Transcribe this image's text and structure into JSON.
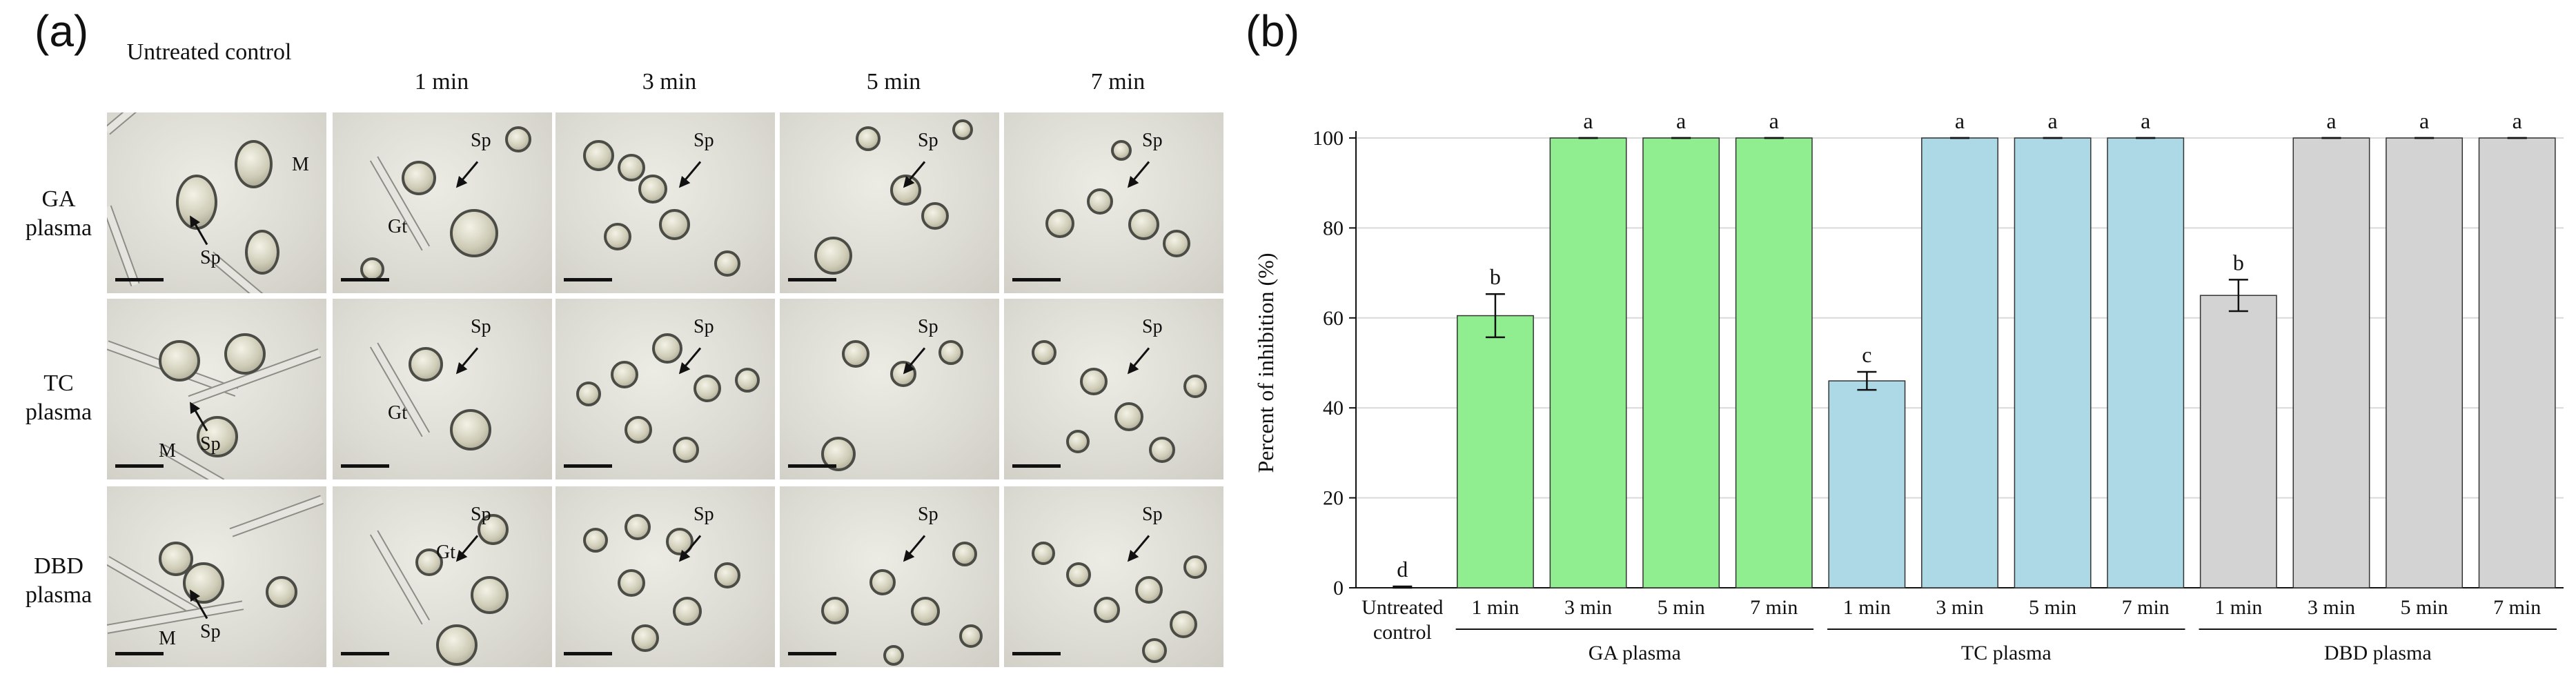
{
  "panel_a": {
    "label": "(a)",
    "columns": [
      "Untreated control",
      "1 min",
      "3 min",
      "5 min",
      "7 min"
    ],
    "rows": [
      "GA plasma",
      "TC plasma",
      "DBD plasma"
    ],
    "marker_labels": {
      "sp": "Sp",
      "m": "M",
      "gt": "Gt"
    }
  },
  "panel_b": {
    "label": "(b)"
  },
  "chart_data": {
    "type": "bar",
    "ylabel": "Percent of inhibition (%)",
    "ylim": [
      0,
      100
    ],
    "yticks": [
      0,
      20,
      40,
      60,
      80,
      100
    ],
    "grid": true,
    "groups": [
      {
        "name": "",
        "color": "#ffffff",
        "bars": [
          {
            "label": "Untreated control",
            "value": 0,
            "error": 0.3,
            "letter": "d"
          }
        ]
      },
      {
        "name": "GA plasma",
        "color": "#90ee90",
        "bars": [
          {
            "label": "1 min",
            "value": 60.5,
            "error": 4.8,
            "letter": "b"
          },
          {
            "label": "3 min",
            "value": 100,
            "error": 0,
            "letter": "a"
          },
          {
            "label": "5 min",
            "value": 100,
            "error": 0,
            "letter": "a"
          },
          {
            "label": "7 min",
            "value": 100,
            "error": 0,
            "letter": "a"
          }
        ]
      },
      {
        "name": "TC plasma",
        "color": "#add8e6",
        "bars": [
          {
            "label": "1 min",
            "value": 46,
            "error": 2,
            "letter": "c"
          },
          {
            "label": "3 min",
            "value": 100,
            "error": 0,
            "letter": "a"
          },
          {
            "label": "5 min",
            "value": 100,
            "error": 0,
            "letter": "a"
          },
          {
            "label": "7 min",
            "value": 100,
            "error": 0,
            "letter": "a"
          }
        ]
      },
      {
        "name": "DBD plasma",
        "color": "#d3d3d3",
        "bars": [
          {
            "label": "1 min",
            "value": 65,
            "error": 3.5,
            "letter": "b"
          },
          {
            "label": "3 min",
            "value": 100,
            "error": 0,
            "letter": "a"
          },
          {
            "label": "5 min",
            "value": 100,
            "error": 0,
            "letter": "a"
          },
          {
            "label": "7 min",
            "value": 100,
            "error": 0,
            "letter": "a"
          }
        ]
      }
    ]
  }
}
